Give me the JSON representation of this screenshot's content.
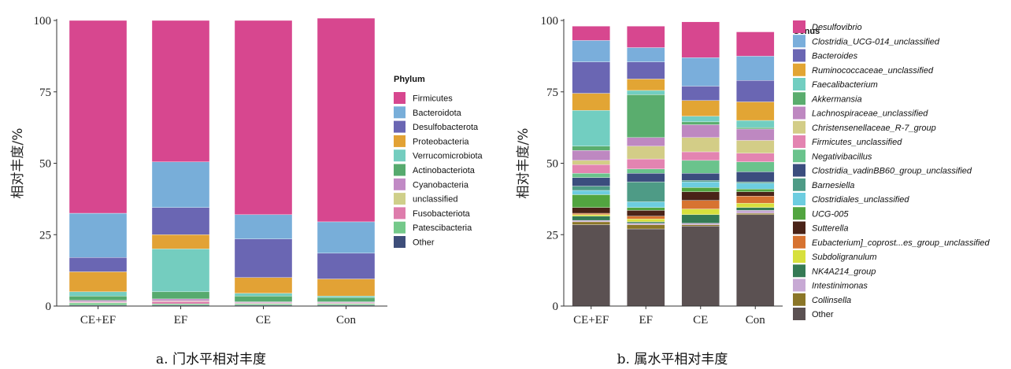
{
  "chart_data": [
    {
      "type": "bar",
      "stacked": true,
      "caption": "a. 门水平相对丰度",
      "ylabel": "相对丰度/%",
      "ylim": [
        0,
        100
      ],
      "yticks": [
        "0",
        "25",
        "50",
        "75",
        "100"
      ],
      "categories": [
        "CE+EF",
        "EF",
        "CE",
        "Con"
      ],
      "legend_title": "Phylum",
      "legend_position": "right",
      "series": [
        {
          "name": "Other",
          "color": "#3e4e7a",
          "values": [
            0.3,
            0.3,
            0.3,
            0.3
          ]
        },
        {
          "name": "Patescibacteria",
          "color": "#74c98a",
          "values": [
            0.8,
            0.5,
            0.5,
            0.5
          ]
        },
        {
          "name": "Fusobacteriota",
          "color": "#de7cac",
          "values": [
            0.2,
            0.8,
            0.2,
            0.2
          ]
        },
        {
          "name": "unclassified",
          "color": "#cfcf8a",
          "values": [
            0.2,
            0.2,
            0.2,
            0.2
          ]
        },
        {
          "name": "Cyanobacteria",
          "color": "#c18ac5",
          "values": [
            0.5,
            0.7,
            0.3,
            0.3
          ]
        },
        {
          "name": "Actinobacteriota",
          "color": "#56aa6e",
          "values": [
            1.5,
            2.5,
            2.0,
            1.5
          ]
        },
        {
          "name": "Verrucomicrobiota",
          "color": "#74cdbf",
          "values": [
            1.5,
            15.0,
            1.0,
            0.5
          ]
        },
        {
          "name": "Proteobacteria",
          "color": "#e2a235",
          "values": [
            7.0,
            5.0,
            5.5,
            6.0
          ]
        },
        {
          "name": "Desulfobacterota",
          "color": "#6a66b3",
          "values": [
            5.0,
            9.5,
            13.5,
            9.0
          ]
        },
        {
          "name": "Bacteroidota",
          "color": "#78aed9",
          "values": [
            15.5,
            16.0,
            8.5,
            11.0
          ]
        },
        {
          "name": "Firmicutes",
          "color": "#d7478f",
          "values": [
            67.5,
            49.5,
            68.0,
            71.3
          ]
        }
      ]
    },
    {
      "type": "bar",
      "stacked": true,
      "caption": "b. 属水平相对丰度",
      "ylabel": "相对丰度/%",
      "ylim": [
        0,
        100
      ],
      "yticks": [
        "0",
        "25",
        "50",
        "75",
        "100"
      ],
      "categories": [
        "CE+EF",
        "EF",
        "CE",
        "Con"
      ],
      "legend_title": "Genus",
      "legend_position": "right",
      "series": [
        {
          "name": "Other",
          "color": "#5b5152",
          "values": [
            28.5,
            27.0,
            28.0,
            32.0
          ]
        },
        {
          "name": "Collinsella",
          "color": "#8b7628",
          "values": [
            1.0,
            1.5,
            0.5,
            0.5
          ]
        },
        {
          "name": "Intestinimonas",
          "color": "#c7a9d4",
          "values": [
            0.5,
            0.5,
            0.5,
            1.0
          ]
        },
        {
          "name": "NK4A214_group",
          "color": "#357a55",
          "values": [
            1.5,
            0.5,
            3.0,
            1.0
          ]
        },
        {
          "name": "Subdoligranulum",
          "color": "#d7e03d",
          "values": [
            0.5,
            1.0,
            2.0,
            1.5
          ]
        },
        {
          "name": "Eubacterium]_coprost...es_group_unclassified",
          "color": "#d77331",
          "values": [
            0.5,
            1.0,
            3.0,
            2.5
          ]
        },
        {
          "name": "Sutterella",
          "color": "#4a2318",
          "values": [
            2.0,
            2.0,
            3.0,
            1.5
          ]
        },
        {
          "name": "UCG-005",
          "color": "#52a540",
          "values": [
            4.5,
            1.0,
            1.5,
            1.0
          ]
        },
        {
          "name": "Clostridiales_unclassified",
          "color": "#6dcde0",
          "values": [
            1.5,
            2.0,
            2.0,
            2.0
          ]
        },
        {
          "name": "Barnesiella",
          "color": "#4e9b86",
          "values": [
            1.5,
            7.0,
            0.5,
            0.5
          ]
        },
        {
          "name": "Clostridia_vadinBB60_group_unclassified",
          "color": "#3b4d7e",
          "values": [
            3.0,
            3.0,
            2.5,
            3.5
          ]
        },
        {
          "name": "Negativibacillus",
          "color": "#6ac38c",
          "values": [
            1.5,
            1.5,
            4.5,
            3.5
          ]
        },
        {
          "name": "Firmicutes_unclassified",
          "color": "#e384b1",
          "values": [
            3.0,
            3.5,
            3.0,
            3.0
          ]
        },
        {
          "name": "Christensenellaceae_R-7_group",
          "color": "#d3cd87",
          "values": [
            1.5,
            4.5,
            5.0,
            4.5
          ]
        },
        {
          "name": "Lachnospiraceae_unclassified",
          "color": "#be88c1",
          "values": [
            3.5,
            3.0,
            4.5,
            4.0
          ]
        },
        {
          "name": "Akkermansia",
          "color": "#5aad6e",
          "values": [
            1.5,
            15.0,
            1.0,
            0.5
          ]
        },
        {
          "name": "Faecalibacterium",
          "color": "#72cec1",
          "values": [
            12.5,
            1.5,
            2.0,
            2.5
          ]
        },
        {
          "name": "Ruminococcaceae_unclassified",
          "color": "#e2a534",
          "values": [
            6.0,
            4.0,
            5.5,
            6.5
          ]
        },
        {
          "name": "Bacteroides",
          "color": "#6a66b3",
          "values": [
            11.0,
            6.0,
            5.0,
            7.5
          ]
        },
        {
          "name": "Clostridia_UCG-014_unclassified",
          "color": "#7aaedb",
          "values": [
            7.5,
            5.0,
            10.0,
            8.5
          ]
        },
        {
          "name": "Desulfovibrio",
          "color": "#d7478f",
          "values": [
            5.0,
            7.5,
            12.5,
            8.5
          ]
        }
      ]
    }
  ]
}
